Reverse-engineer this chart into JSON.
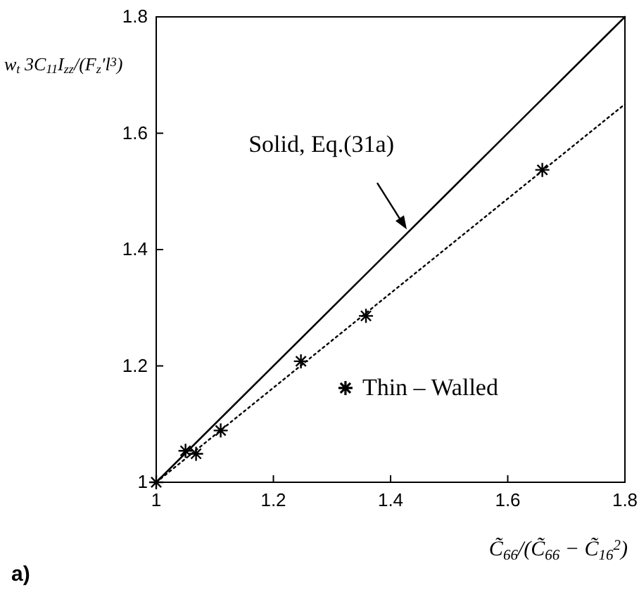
{
  "chart_data": {
    "type": "scatter",
    "xlabel": "C̃$_{66}$/(C̃$_{66}$ − C̃$_{16}$$^{2}$)",
    "ylabel": "w$_{t}$ 3C$_{11}$I$_{zz}$/(F$_{z}$′l$^{3}$)",
    "xlim": [
      1,
      1.8
    ],
    "ylim": [
      1,
      1.8
    ],
    "xticks": [
      1,
      1.2,
      1.4,
      1.6,
      1.8
    ],
    "yticks": [
      1,
      1.2,
      1.4,
      1.6,
      1.8
    ],
    "grid": false,
    "legend": "bottom right",
    "annotations": [
      "Solid,   Eq.(31a)",
      "a)"
    ],
    "series": [
      {
        "type": "line",
        "color": "#000000",
        "line_style": "solid",
        "marker": "none",
        "x": [
          1,
          1.8
        ],
        "values": [
          1,
          1.8
        ]
      },
      {
        "type": "line",
        "color": "#000000",
        "line_style": "dotted",
        "marker": "none",
        "x": [
          1,
          1.8
        ],
        "values": [
          1,
          1.65
        ]
      },
      {
        "name": "Thin – Walled",
        "color": "#000000",
        "marker": "cross",
        "x": [
          1,
          1.05,
          1.068,
          1.11,
          1.247,
          1.358,
          1.659
        ],
        "values": [
          1,
          1.054,
          1.049,
          1.089,
          1.208,
          1.286,
          1.537
        ]
      }
    ]
  }
}
